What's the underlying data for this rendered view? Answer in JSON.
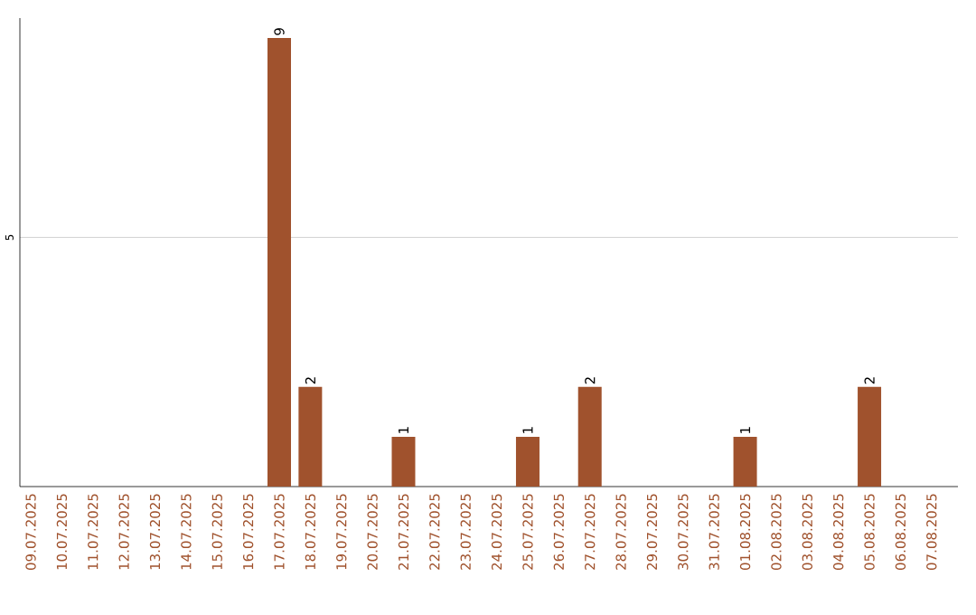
{
  "chart_data": {
    "type": "bar",
    "categories": [
      "09.07.2025",
      "10.07.2025",
      "11.07.2025",
      "12.07.2025",
      "13.07.2025",
      "14.07.2025",
      "15.07.2025",
      "16.07.2025",
      "17.07.2025",
      "18.07.2025",
      "19.07.2025",
      "20.07.2025",
      "21.07.2025",
      "22.07.2025",
      "23.07.2025",
      "24.07.2025",
      "25.07.2025",
      "26.07.2025",
      "27.07.2025",
      "28.07.2025",
      "29.07.2025",
      "30.07.2025",
      "31.07.2025",
      "01.08.2025",
      "02.08.2025",
      "03.08.2025",
      "04.08.2025",
      "05.08.2025",
      "06.08.2025",
      "07.08.2025"
    ],
    "values": [
      0,
      0,
      0,
      0,
      0,
      0,
      0,
      0,
      9,
      2,
      0,
      0,
      1,
      0,
      0,
      0,
      1,
      0,
      2,
      0,
      0,
      0,
      0,
      1,
      0,
      0,
      0,
      2,
      0,
      0
    ],
    "value_labels": [
      null,
      null,
      null,
      null,
      null,
      null,
      null,
      null,
      "9",
      "2",
      null,
      null,
      "1",
      null,
      null,
      null,
      "1",
      null,
      "2",
      null,
      null,
      null,
      null,
      "1",
      null,
      null,
      null,
      "2",
      null,
      null
    ],
    "color": "#a0522d",
    "ylim": [
      0,
      9.4
    ],
    "yticks": [
      5
    ],
    "grid": "y"
  }
}
